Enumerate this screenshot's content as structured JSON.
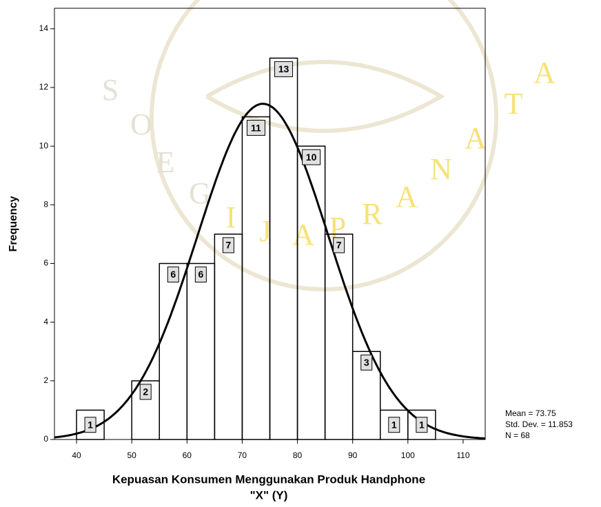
{
  "chart_data": {
    "type": "histogram",
    "bins": [
      40,
      45,
      50,
      55,
      60,
      65,
      70,
      75,
      80,
      85,
      90,
      95,
      100,
      105
    ],
    "values": [
      1,
      0,
      2,
      6,
      6,
      7,
      11,
      13,
      10,
      7,
      3,
      1,
      1
    ],
    "color": "#000000",
    "xlim": [
      36,
      114
    ],
    "ylim": [
      0,
      14.7
    ],
    "xticks": [
      40,
      50,
      60,
      70,
      80,
      90,
      100,
      110
    ],
    "yticks": [
      0,
      2,
      4,
      6,
      8,
      10,
      12,
      14
    ],
    "y_label": "Frequency",
    "x_label": [
      "Kepuasan Konsumen Menggunakan Produk Handphone",
      "\"X\" (Y)"
    ],
    "normal_curve": {
      "mean": {
        "value": 73.75,
        "label": "Mean = 73.75"
      },
      "sd": {
        "value": 11.853,
        "label": "Std. Dev. = 11.853"
      },
      "n": {
        "value": 68,
        "label": "N = 68"
      }
    },
    "watermark": [
      "S",
      "O",
      "E",
      "G",
      "I",
      "J",
      "A",
      "P",
      "R",
      "A",
      "N",
      "A",
      "T",
      "A"
    ]
  }
}
